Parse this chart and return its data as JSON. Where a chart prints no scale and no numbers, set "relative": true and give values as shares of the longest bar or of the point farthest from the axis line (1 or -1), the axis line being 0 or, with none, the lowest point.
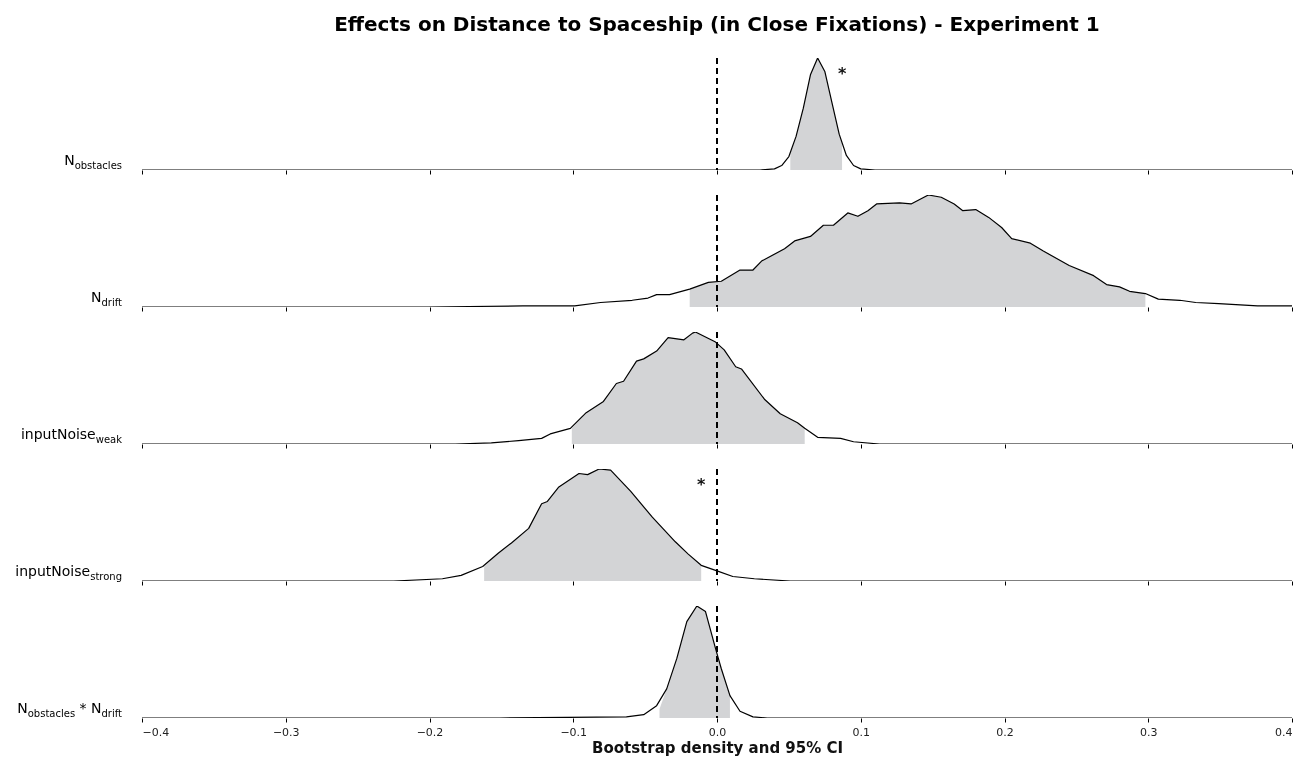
{
  "chart_data": [
    {
      "type": "line",
      "title": "Effects on Distance to Spaceship (in Close Fixations) - Experiment 1",
      "ylabel": "N$_{obstacles}$",
      "relative": true,
      "xlim": [
        -0.4,
        0.4
      ],
      "xticks": [
        -0.4,
        -0.3,
        -0.2,
        -0.1,
        0.0,
        0.1,
        0.2,
        0.3,
        0.4
      ],
      "tick_labels": false,
      "series": [
        {
          "type": "area",
          "color": "#d3d4d6",
          "x": [
            0.051,
            0.055,
            0.06,
            0.065,
            0.07,
            0.075,
            0.08,
            0.085,
            0.087
          ],
          "values": [
            0.15,
            0.3,
            0.55,
            0.85,
            1,
            0.88,
            0.6,
            0.32,
            0.24
          ]
        },
        {
          "type": "line",
          "color": "#000000",
          "x": [
            -0.4,
            0.03,
            0.04,
            0.045,
            0.05,
            0.055,
            0.06,
            0.065,
            0.07,
            0.075,
            0.08,
            0.085,
            0.09,
            0.095,
            0.1,
            0.11,
            0.4
          ],
          "values": [
            0,
            0,
            0.01,
            0.04,
            0.12,
            0.3,
            0.55,
            0.85,
            1,
            0.88,
            0.6,
            0.32,
            0.13,
            0.04,
            0.01,
            0,
            0
          ]
        }
      ],
      "ref_lines": [
        {
          "axis": "x",
          "value": 0,
          "color": "#000000",
          "line_style": "dashed"
        }
      ],
      "annotations": [
        "*"
      ]
    },
    {
      "type": "line",
      "ylabel": "N$_{drift}$",
      "relative": true,
      "xlim": [
        -0.4,
        0.4
      ],
      "xticks": [
        -0.4,
        -0.3,
        -0.2,
        -0.1,
        0.0,
        0.1,
        0.2,
        0.3,
        0.4
      ],
      "tick_labels": false,
      "series": [
        {
          "type": "area",
          "color": "#d3d4d6",
          "x": [
            -0.019,
            -0.006,
            0.003,
            0.016,
            0.025,
            0.031,
            0.047,
            0.054,
            0.065,
            0.074,
            0.081,
            0.091,
            0.098,
            0.105,
            0.111,
            0.127,
            0.135,
            0.147,
            0.156,
            0.165,
            0.171,
            0.18,
            0.189,
            0.198,
            0.205,
            0.218,
            0.227,
            0.245,
            0.262,
            0.271,
            0.28,
            0.287,
            0.298
          ],
          "values": [
            0.16,
            0.22,
            0.23,
            0.33,
            0.33,
            0.41,
            0.52,
            0.59,
            0.63,
            0.73,
            0.73,
            0.84,
            0.81,
            0.86,
            0.92,
            0.93,
            0.92,
            1.0,
            0.98,
            0.92,
            0.86,
            0.87,
            0.8,
            0.71,
            0.61,
            0.57,
            0.5,
            0.37,
            0.28,
            0.2,
            0.18,
            0.14,
            0.12
          ]
        },
        {
          "type": "line",
          "color": "#000000",
          "x": [
            -0.4,
            -0.29,
            -0.201,
            -0.135,
            -0.099,
            -0.081,
            -0.059,
            -0.048,
            -0.042,
            -0.033,
            -0.019,
            -0.006,
            0.003,
            0.016,
            0.025,
            0.031,
            0.047,
            0.054,
            0.065,
            0.074,
            0.081,
            0.091,
            0.098,
            0.105,
            0.111,
            0.127,
            0.135,
            0.147,
            0.156,
            0.165,
            0.171,
            0.18,
            0.189,
            0.198,
            0.205,
            0.218,
            0.227,
            0.245,
            0.262,
            0.271,
            0.28,
            0.287,
            0.298,
            0.307,
            0.322,
            0.333,
            0.349,
            0.376,
            0.4
          ],
          "values": [
            0,
            0,
            0,
            0.01,
            0.01,
            0.04,
            0.06,
            0.08,
            0.11,
            0.11,
            0.16,
            0.22,
            0.23,
            0.33,
            0.33,
            0.41,
            0.52,
            0.59,
            0.63,
            0.73,
            0.73,
            0.84,
            0.81,
            0.86,
            0.92,
            0.93,
            0.92,
            1.0,
            0.98,
            0.92,
            0.86,
            0.87,
            0.8,
            0.71,
            0.61,
            0.57,
            0.5,
            0.37,
            0.28,
            0.2,
            0.18,
            0.14,
            0.12,
            0.07,
            0.06,
            0.04,
            0.03,
            0.01,
            0.01
          ]
        }
      ],
      "ref_lines": [
        {
          "axis": "x",
          "value": 0,
          "color": "#000000",
          "line_style": "dashed"
        }
      ]
    },
    {
      "type": "line",
      "ylabel": "inputNoise$_{weak}$",
      "relative": true,
      "xlim": [
        -0.4,
        0.4
      ],
      "xticks": [
        -0.4,
        -0.3,
        -0.2,
        -0.1,
        0.0,
        0.1,
        0.2,
        0.3,
        0.4
      ],
      "tick_labels": false,
      "series": [
        {
          "type": "area",
          "color": "#d3d4d6",
          "x": [
            -0.101,
            -0.091,
            -0.079,
            -0.07,
            -0.065,
            -0.056,
            -0.051,
            -0.042,
            -0.034,
            -0.023,
            -0.017,
            -0.015,
            -0.001,
            0.005,
            0.013,
            0.017,
            0.033,
            0.044,
            0.056,
            0.061
          ],
          "values": [
            0.14,
            0.28,
            0.38,
            0.54,
            0.56,
            0.74,
            0.76,
            0.83,
            0.95,
            0.93,
            0.99,
            1.0,
            0.91,
            0.84,
            0.69,
            0.67,
            0.4,
            0.27,
            0.19,
            0.14
          ]
        },
        {
          "type": "line",
          "color": "#000000",
          "x": [
            -0.4,
            -0.29,
            -0.182,
            -0.157,
            -0.138,
            -0.122,
            -0.116,
            -0.102,
            -0.091,
            -0.079,
            -0.07,
            -0.065,
            -0.056,
            -0.051,
            -0.042,
            -0.034,
            -0.023,
            -0.017,
            -0.015,
            -0.001,
            0.005,
            0.013,
            0.017,
            0.033,
            0.044,
            0.056,
            0.061,
            0.07,
            0.086,
            0.095,
            0.113,
            0.4
          ],
          "values": [
            0,
            0,
            0,
            0.01,
            0.03,
            0.05,
            0.09,
            0.14,
            0.28,
            0.38,
            0.54,
            0.56,
            0.74,
            0.76,
            0.83,
            0.95,
            0.93,
            0.99,
            1.0,
            0.91,
            0.84,
            0.69,
            0.67,
            0.4,
            0.27,
            0.19,
            0.14,
            0.06,
            0.05,
            0.02,
            0,
            0
          ]
        }
      ],
      "ref_lines": [
        {
          "axis": "x",
          "value": 0,
          "color": "#000000",
          "line_style": "dashed"
        }
      ]
    },
    {
      "type": "line",
      "ylabel": "inputNoise$_{strong}$",
      "relative": true,
      "xlim": [
        -0.4,
        0.4
      ],
      "xticks": [
        -0.4,
        -0.3,
        -0.2,
        -0.1,
        0.0,
        0.1,
        0.2,
        0.3,
        0.4
      ],
      "tick_labels": false,
      "series": [
        {
          "type": "area",
          "color": "#d3d4d6",
          "x": [
            -0.162,
            -0.152,
            -0.143,
            -0.131,
            -0.122,
            -0.118,
            -0.11,
            -0.096,
            -0.09,
            -0.082,
            -0.074,
            -0.06,
            -0.045,
            -0.029,
            -0.02,
            -0.011
          ],
          "values": [
            0.13,
            0.25,
            0.34,
            0.47,
            0.69,
            0.71,
            0.84,
            0.96,
            0.95,
            1.0,
            0.99,
            0.8,
            0.57,
            0.35,
            0.24,
            0.14
          ]
        },
        {
          "type": "line",
          "color": "#000000",
          "x": [
            -0.4,
            -0.29,
            -0.225,
            -0.191,
            -0.178,
            -0.163,
            -0.152,
            -0.143,
            -0.131,
            -0.122,
            -0.118,
            -0.11,
            -0.096,
            -0.09,
            -0.082,
            -0.074,
            -0.06,
            -0.045,
            -0.029,
            -0.02,
            -0.011,
            0.0,
            0.011,
            0.026,
            0.051,
            0.4
          ],
          "values": [
            0,
            0,
            0,
            0.02,
            0.05,
            0.13,
            0.25,
            0.34,
            0.47,
            0.69,
            0.71,
            0.84,
            0.96,
            0.95,
            1.0,
            0.99,
            0.8,
            0.57,
            0.35,
            0.24,
            0.14,
            0.09,
            0.04,
            0.02,
            0,
            0
          ]
        }
      ],
      "ref_lines": [
        {
          "axis": "x",
          "value": 0,
          "color": "#000000",
          "line_style": "dashed"
        }
      ],
      "annotations": [
        "*"
      ]
    },
    {
      "type": "line",
      "ylabel": "N$_{obstacles}$ * N$_{drift}$",
      "xlabel": "Bootstrap density and 95% CI",
      "relative": true,
      "xlim": [
        -0.4,
        0.4
      ],
      "xticks": [
        -0.4,
        -0.3,
        -0.2,
        -0.1,
        {
          "value": 0,
          "label": "0.0"
        },
        0.1,
        0.2,
        0.3,
        0.4
      ],
      "series": [
        {
          "type": "area",
          "color": "#d3d4d6",
          "x": [
            -0.04,
            -0.035,
            -0.028,
            -0.021,
            -0.014,
            -0.008,
            -0.001,
            0.003,
            0.009
          ],
          "values": [
            0.08,
            0.26,
            0.53,
            0.86,
            1.0,
            0.95,
            0.62,
            0.44,
            0.2
          ]
        },
        {
          "type": "line",
          "color": "#000000",
          "x": [
            -0.4,
            -0.151,
            -0.063,
            -0.051,
            -0.042,
            -0.035,
            -0.028,
            -0.021,
            -0.014,
            -0.008,
            -0.001,
            0.003,
            0.009,
            0.016,
            0.025,
            0.035,
            0.4
          ],
          "values": [
            0,
            0,
            0.01,
            0.03,
            0.11,
            0.26,
            0.53,
            0.86,
            1.0,
            0.95,
            0.62,
            0.44,
            0.2,
            0.06,
            0.01,
            0,
            0
          ]
        }
      ],
      "ref_lines": [
        {
          "axis": "x",
          "value": 0,
          "color": "#000000",
          "line_style": "dashed"
        }
      ]
    }
  ]
}
